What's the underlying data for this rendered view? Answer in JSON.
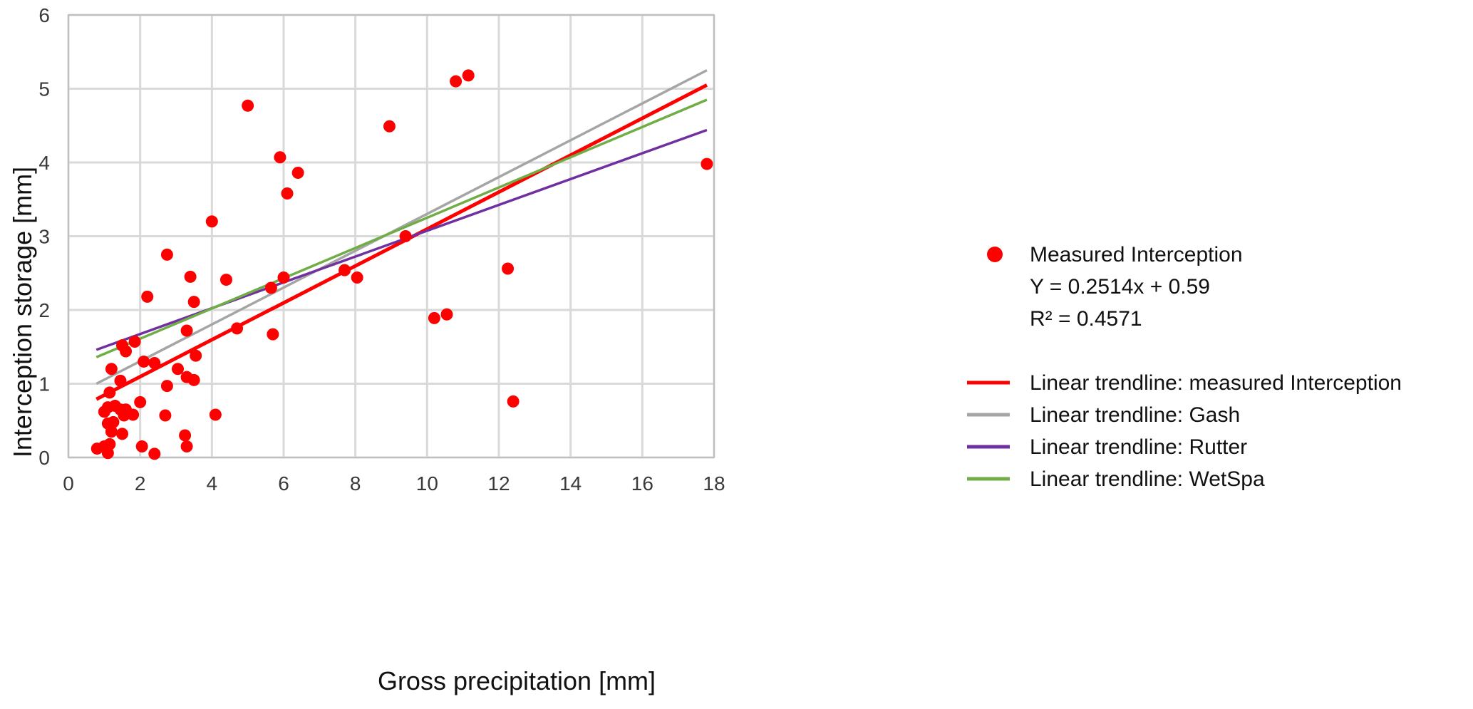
{
  "chart_data": {
    "type": "scatter",
    "title": "",
    "xlabel": "Gross precipitation [mm]",
    "ylabel": "Interception storage [mm]",
    "xlim": [
      0,
      18
    ],
    "ylim": [
      0,
      6
    ],
    "xticks": [
      0,
      2,
      4,
      6,
      8,
      10,
      12,
      14,
      16,
      18
    ],
    "yticks": [
      0,
      1,
      2,
      3,
      4,
      5,
      6
    ],
    "grid": true,
    "legend_position": "right",
    "series": [
      {
        "name": "Measured Interception",
        "kind": "scatter",
        "color": "#ff0000",
        "points": [
          [
            0.8,
            0.12
          ],
          [
            1.0,
            0.15
          ],
          [
            1.1,
            0.06
          ],
          [
            1.15,
            0.18
          ],
          [
            1.0,
            0.62
          ],
          [
            1.1,
            0.68
          ],
          [
            1.1,
            0.46
          ],
          [
            1.2,
            0.35
          ],
          [
            1.25,
            0.48
          ],
          [
            1.3,
            0.7
          ],
          [
            1.15,
            0.88
          ],
          [
            1.2,
            1.2
          ],
          [
            1.45,
            0.65
          ],
          [
            1.45,
            1.04
          ],
          [
            1.5,
            0.32
          ],
          [
            1.55,
            0.57
          ],
          [
            1.6,
            0.65
          ],
          [
            1.5,
            1.52
          ],
          [
            1.6,
            1.44
          ],
          [
            1.8,
            0.58
          ],
          [
            1.85,
            1.57
          ],
          [
            2.0,
            0.75
          ],
          [
            2.05,
            0.15
          ],
          [
            2.1,
            1.3
          ],
          [
            2.2,
            2.18
          ],
          [
            2.4,
            0.05
          ],
          [
            2.4,
            1.28
          ],
          [
            2.7,
            0.57
          ],
          [
            2.75,
            0.97
          ],
          [
            2.75,
            2.75
          ],
          [
            3.05,
            1.2
          ],
          [
            3.25,
            0.3
          ],
          [
            3.3,
            0.15
          ],
          [
            3.3,
            1.09
          ],
          [
            3.3,
            1.72
          ],
          [
            3.4,
            2.45
          ],
          [
            3.5,
            1.05
          ],
          [
            3.5,
            2.11
          ],
          [
            3.55,
            1.38
          ],
          [
            4.0,
            3.2
          ],
          [
            4.1,
            0.58
          ],
          [
            4.4,
            2.41
          ],
          [
            4.7,
            1.75
          ],
          [
            5.0,
            4.77
          ],
          [
            5.65,
            2.3
          ],
          [
            5.7,
            1.67
          ],
          [
            5.9,
            4.07
          ],
          [
            6.0,
            2.44
          ],
          [
            6.1,
            3.58
          ],
          [
            6.4,
            3.86
          ],
          [
            7.7,
            2.54
          ],
          [
            8.05,
            2.44
          ],
          [
            8.95,
            4.49
          ],
          [
            9.4,
            3.0
          ],
          [
            10.2,
            1.89
          ],
          [
            10.55,
            1.94
          ],
          [
            10.8,
            5.1
          ],
          [
            11.15,
            5.18
          ],
          [
            12.25,
            2.56
          ],
          [
            12.4,
            0.76
          ],
          [
            17.8,
            3.98
          ]
        ]
      },
      {
        "name": "Linear trendline: measured Interception",
        "kind": "line",
        "color": "#ff0000",
        "x": [
          0.78,
          17.8
        ],
        "y": [
          0.79,
          5.05
        ]
      },
      {
        "name": "Linear trendline: Gash",
        "kind": "line",
        "color": "#a5a5a5",
        "x": [
          0.78,
          17.8
        ],
        "y": [
          1.0,
          5.25
        ]
      },
      {
        "name": "Linear trendline: Rutter",
        "kind": "line",
        "color": "#7030a0",
        "x": [
          0.78,
          17.8
        ],
        "y": [
          1.46,
          4.44
        ]
      },
      {
        "name": "Linear trendline: WetSpa",
        "kind": "line",
        "color": "#70ad47",
        "x": [
          0.78,
          17.8
        ],
        "y": [
          1.36,
          4.85
        ]
      }
    ],
    "legend": {
      "scatter_label": "Measured Interception",
      "equation": "Y = 0.2514x + 0.59",
      "r_squared": "R² = 0.4571"
    }
  }
}
